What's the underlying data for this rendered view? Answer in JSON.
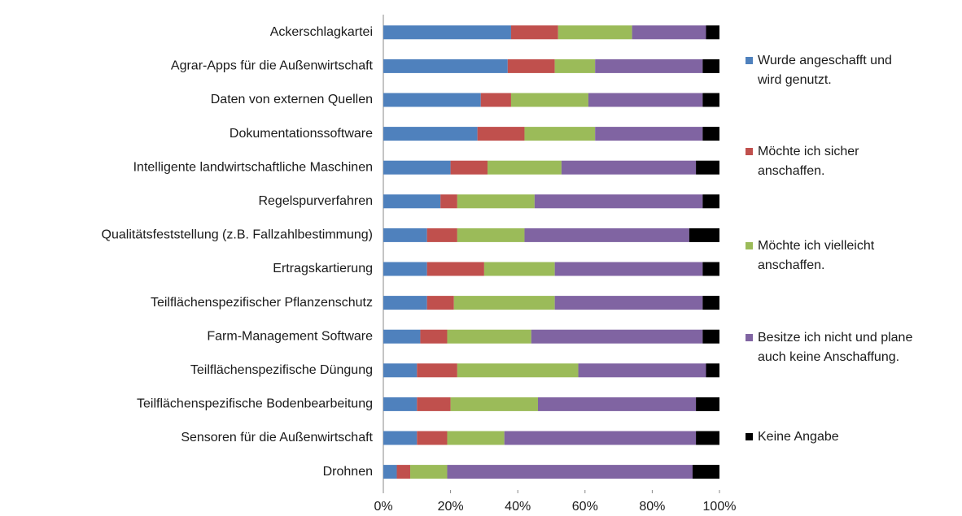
{
  "chart_data": {
    "type": "stacked_bar_horizontal",
    "categories": [
      "Ackerschlagkartei",
      "Agrar-Apps für die Außenwirtschaft",
      "Daten von externen Quellen",
      "Dokumentationssoftware",
      "Intelligente landwirtschaftliche Maschinen",
      "Regelspurverfahren",
      "Qualitätsfeststellung (z.B. Fallzahlbestimmung)",
      "Ertragskartierung",
      "Teilflächenspezifischer Pflanzenschutz",
      "Farm-Management Software",
      "Teilflächenspezifische Düngung",
      "Teilflächenspezifische Bodenbearbeitung",
      "Sensoren für die Außenwirtschaft",
      "Drohnen"
    ],
    "series": [
      {
        "name": "Wurde angeschafft und wird genutzt.",
        "color": "#4f81bd",
        "values": [
          38,
          37,
          29,
          28,
          20,
          17,
          13,
          13,
          13,
          11,
          10,
          10,
          10,
          4
        ]
      },
      {
        "name": "Möchte ich sicher anschaffen.",
        "color": "#c0504d",
        "values": [
          14,
          14,
          9,
          14,
          11,
          5,
          9,
          17,
          8,
          8,
          12,
          10,
          9,
          4
        ]
      },
      {
        "name": "Möchte ich vielleicht anschaffen.",
        "color": "#9bbb59",
        "values": [
          22,
          12,
          23,
          21,
          22,
          23,
          20,
          21,
          30,
          25,
          36,
          26,
          17,
          11
        ]
      },
      {
        "name": "Besitze ich nicht und plane auch keine Anschaffung.",
        "color": "#8064a2",
        "values": [
          22,
          32,
          34,
          32,
          40,
          50,
          49,
          44,
          44,
          51,
          38,
          47,
          57,
          73
        ]
      },
      {
        "name": "Keine Angabe",
        "color": "#000000",
        "values": [
          4,
          5,
          5,
          5,
          7,
          5,
          9,
          5,
          5,
          5,
          4,
          7,
          7,
          8
        ]
      }
    ],
    "xlim": [
      0,
      100
    ],
    "xticks": [
      {
        "value": 0,
        "label": "0%"
      },
      {
        "value": 20,
        "label": "20%"
      },
      {
        "value": 40,
        "label": "40%"
      },
      {
        "value": 60,
        "label": "60%"
      },
      {
        "value": 80,
        "label": "80%"
      },
      {
        "value": 100,
        "label": "100%"
      }
    ]
  }
}
